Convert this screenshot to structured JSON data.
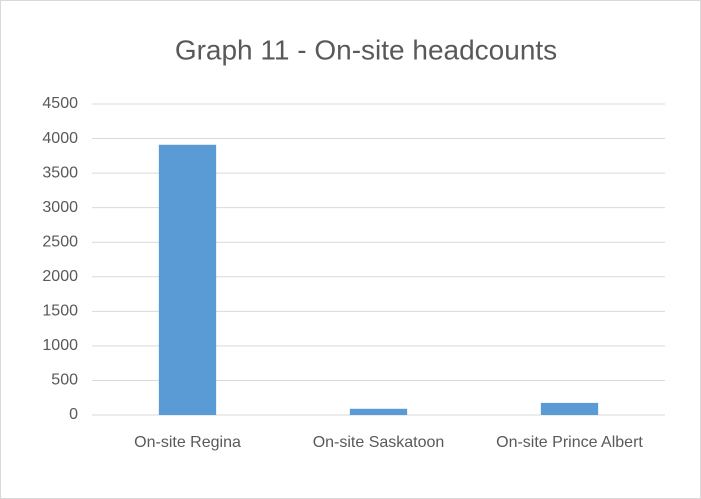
{
  "chart_data": {
    "type": "bar",
    "title": "Graph 11 - On-site headcounts",
    "categories": [
      "On-site Regina",
      "On-site Saskatoon",
      "On-site Prince Albert"
    ],
    "values": [
      3910,
      90,
      175
    ],
    "color": "#5b9bd5",
    "ylim": [
      0,
      4500
    ],
    "yticks": [
      0,
      500,
      1000,
      1500,
      2000,
      2500,
      3000,
      3500,
      4000,
      4500
    ],
    "grid": true
  }
}
